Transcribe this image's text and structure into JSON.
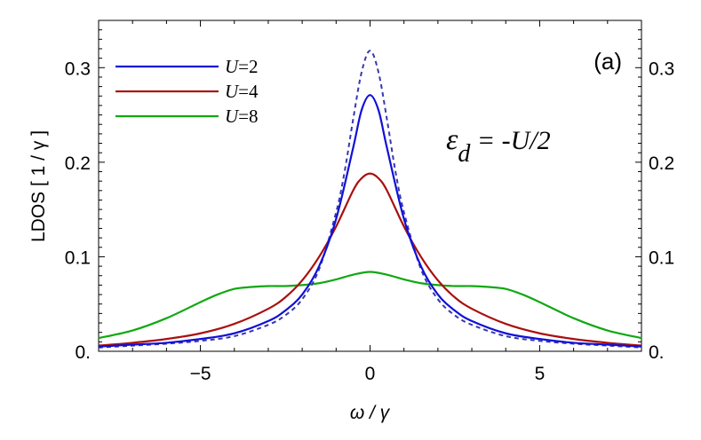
{
  "chart_data": {
    "type": "line",
    "panel_label": "(a)",
    "xlabel": "ω / γ",
    "ylabel": "LDOS  [ 1 / γ ]",
    "xlim": [
      -8,
      8
    ],
    "ylim": [
      0,
      0.35
    ],
    "x_ticks": [
      -5,
      0,
      5
    ],
    "x_tick_labels": [
      "−5",
      "0",
      "5"
    ],
    "y_ticks": [
      0,
      0.1,
      0.2,
      0.3
    ],
    "y_tick_labels": [
      "0.",
      "0.1",
      "0.2",
      "0.3"
    ],
    "right_y_tick_labels": [
      "0.",
      "0.1",
      "0.2",
      "0.3"
    ],
    "grid": false,
    "legend_position": "top-left",
    "annotation": {
      "lhs": "ε",
      "sub": "d",
      "rhs": " = -U/2"
    },
    "series": [
      {
        "name": "U=2",
        "legend_var": "U",
        "legend_val": "=2",
        "color": "#1010d8",
        "dash": "solid",
        "x": [
          -8,
          -7,
          -6,
          -5,
          -4,
          -3,
          -2.5,
          -2,
          -1.5,
          -1,
          -0.5,
          -0.25,
          0,
          0.25,
          0.5,
          1,
          1.5,
          2,
          2.5,
          3,
          4,
          5,
          6,
          7,
          8
        ],
        "y": [
          0.005,
          0.007,
          0.009,
          0.013,
          0.019,
          0.032,
          0.043,
          0.06,
          0.09,
          0.14,
          0.215,
          0.255,
          0.271,
          0.255,
          0.215,
          0.14,
          0.09,
          0.06,
          0.043,
          0.032,
          0.019,
          0.013,
          0.009,
          0.007,
          0.005
        ]
      },
      {
        "name": "U=4",
        "legend_var": "U",
        "legend_val": "=4",
        "color": "#a81010",
        "dash": "solid",
        "x": [
          -8,
          -7,
          -6,
          -5,
          -4,
          -3,
          -2.5,
          -2,
          -1.5,
          -1,
          -0.5,
          -0.25,
          0,
          0.25,
          0.5,
          1,
          1.5,
          2,
          2.5,
          3,
          4,
          5,
          6,
          7,
          8
        ],
        "y": [
          0.006,
          0.009,
          0.013,
          0.019,
          0.029,
          0.045,
          0.057,
          0.075,
          0.1,
          0.132,
          0.17,
          0.183,
          0.188,
          0.183,
          0.17,
          0.132,
          0.1,
          0.075,
          0.057,
          0.045,
          0.029,
          0.019,
          0.013,
          0.009,
          0.006
        ]
      },
      {
        "name": "U=8",
        "legend_var": "U",
        "legend_val": "=8",
        "color": "#10a810",
        "dash": "solid",
        "x": [
          -8,
          -7,
          -6,
          -5,
          -4.5,
          -4,
          -3.5,
          -3,
          -2.5,
          -2,
          -1.5,
          -1,
          -0.5,
          0,
          0.5,
          1,
          1.5,
          2,
          2.5,
          3,
          3.5,
          4,
          4.5,
          5,
          6,
          7,
          8
        ],
        "y": [
          0.014,
          0.022,
          0.035,
          0.052,
          0.06,
          0.066,
          0.068,
          0.069,
          0.069,
          0.07,
          0.072,
          0.076,
          0.081,
          0.084,
          0.081,
          0.076,
          0.072,
          0.07,
          0.069,
          0.069,
          0.068,
          0.066,
          0.06,
          0.052,
          0.035,
          0.022,
          0.014
        ]
      },
      {
        "name": "",
        "color": "#3838b0",
        "dash": "dashed",
        "x": [
          -8,
          -7,
          -6,
          -5,
          -4,
          -3,
          -2.5,
          -2,
          -1.5,
          -1,
          -0.75,
          -0.5,
          -0.25,
          0,
          0.25,
          0.5,
          0.75,
          1,
          1.5,
          2,
          2.5,
          3,
          4,
          5,
          6,
          7,
          8
        ],
        "y": [
          0.004,
          0.006,
          0.008,
          0.011,
          0.016,
          0.028,
          0.038,
          0.055,
          0.087,
          0.147,
          0.19,
          0.245,
          0.295,
          0.318,
          0.295,
          0.245,
          0.19,
          0.147,
          0.087,
          0.055,
          0.038,
          0.028,
          0.016,
          0.011,
          0.008,
          0.006,
          0.004
        ]
      }
    ]
  }
}
